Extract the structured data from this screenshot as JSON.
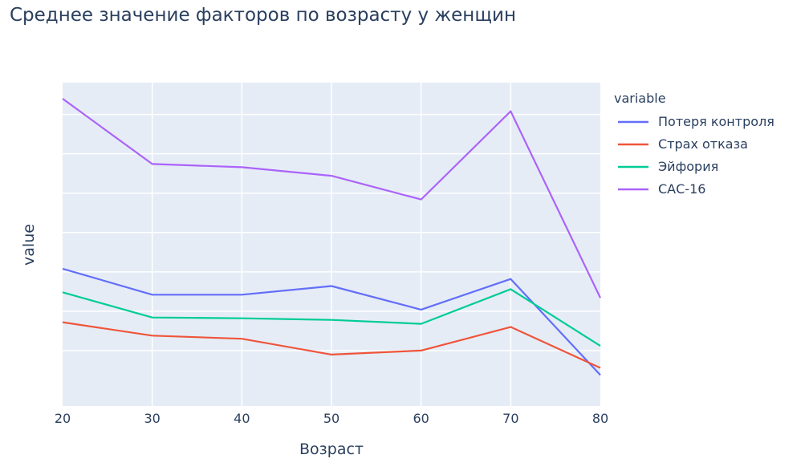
{
  "chart_data": {
    "type": "line",
    "title": "Среднее значение факторов по возрасту у женщин",
    "xlabel": "Возраст",
    "ylabel": "value",
    "legend_title": "variable",
    "x": [
      20,
      30,
      40,
      50,
      60,
      70,
      80
    ],
    "xlim": [
      20,
      80
    ],
    "ylim": [
      0,
      37
    ],
    "grid": true,
    "y_tick_labels_shown": false,
    "legend_position": "right",
    "series": [
      {
        "name": "Потеря контроля",
        "color": "#636efa",
        "values": [
          15.4,
          12.1,
          12.1,
          13.2,
          10.2,
          14.1,
          1.9
        ]
      },
      {
        "name": "Страх отказа",
        "color": "#ef553b",
        "values": [
          8.6,
          6.9,
          6.5,
          4.5,
          5.0,
          8.0,
          2.8
        ]
      },
      {
        "name": "Эйфория",
        "color": "#00cc96",
        "values": [
          12.4,
          9.2,
          9.1,
          8.9,
          8.4,
          12.8,
          5.6
        ]
      },
      {
        "name": "САС-16",
        "color": "#ab63fa",
        "values": [
          37.0,
          28.7,
          28.3,
          27.2,
          24.2,
          35.4,
          11.7
        ]
      }
    ]
  }
}
